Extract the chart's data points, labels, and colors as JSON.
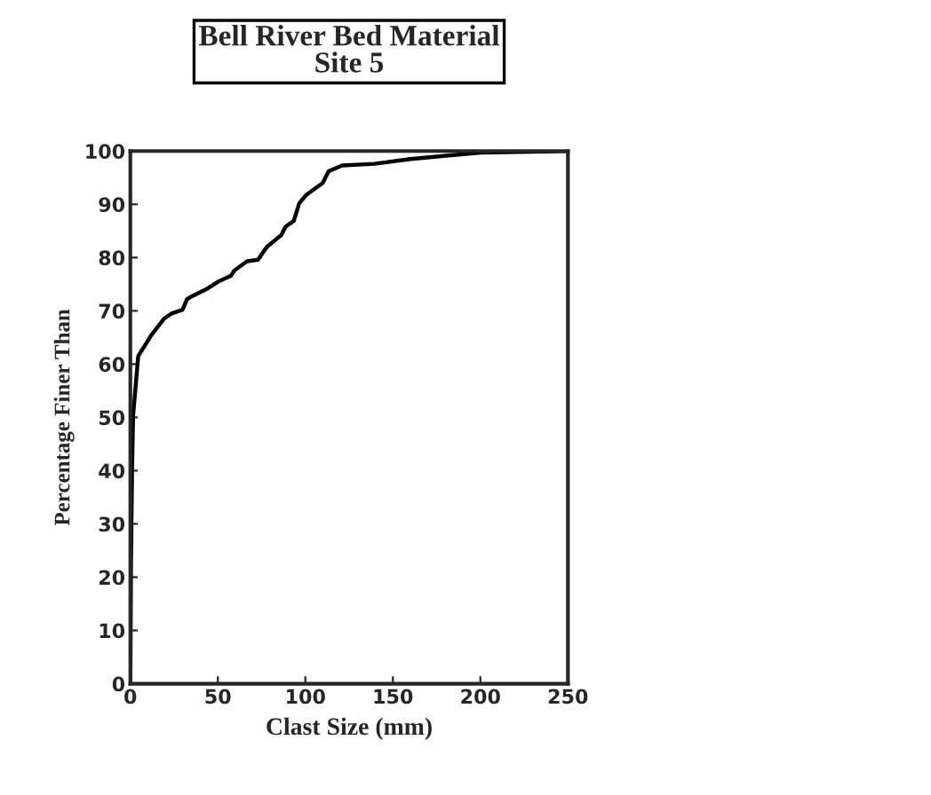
{
  "chart_data": {
    "type": "line",
    "title": "Bell River Bed Material",
    "subtitle": "Site 5",
    "xlabel": "Clast Size (mm)",
    "ylabel": "Percentage Finer Than",
    "xlim": [
      0,
      250
    ],
    "xticks": [
      0,
      50,
      100,
      150,
      200,
      250
    ],
    "ylim": [
      0,
      100
    ],
    "yticks": [
      0,
      10,
      20,
      30,
      40,
      50,
      60,
      70,
      80,
      90,
      100
    ],
    "grid": false,
    "legend": false,
    "marker": "none",
    "line_style": "solid",
    "series": [
      {
        "color": "#000000",
        "x": [
          0,
          0.4,
          1,
          1.6,
          4.5,
          12.3,
          19.5,
          23.6,
          29.8,
          32.4,
          34.9,
          43.1,
          50.3,
          57.5,
          59.5,
          66.7,
          72.9,
          78,
          86.2,
          88.7,
          93.4,
          96.5,
          100.6,
          109.9,
          113.3,
          121,
          139.5,
          160,
          200,
          250
        ],
        "values": [
          0,
          23,
          40.6,
          50.4,
          61.5,
          65.6,
          68.6,
          69.5,
          70.2,
          72.2,
          72.7,
          74,
          75.5,
          76.6,
          77.6,
          79.3,
          79.6,
          82,
          84.2,
          85.8,
          86.9,
          90.2,
          91.8,
          94,
          96.2,
          97.3,
          97.6,
          98.5,
          99.7,
          100
        ]
      }
    ]
  }
}
